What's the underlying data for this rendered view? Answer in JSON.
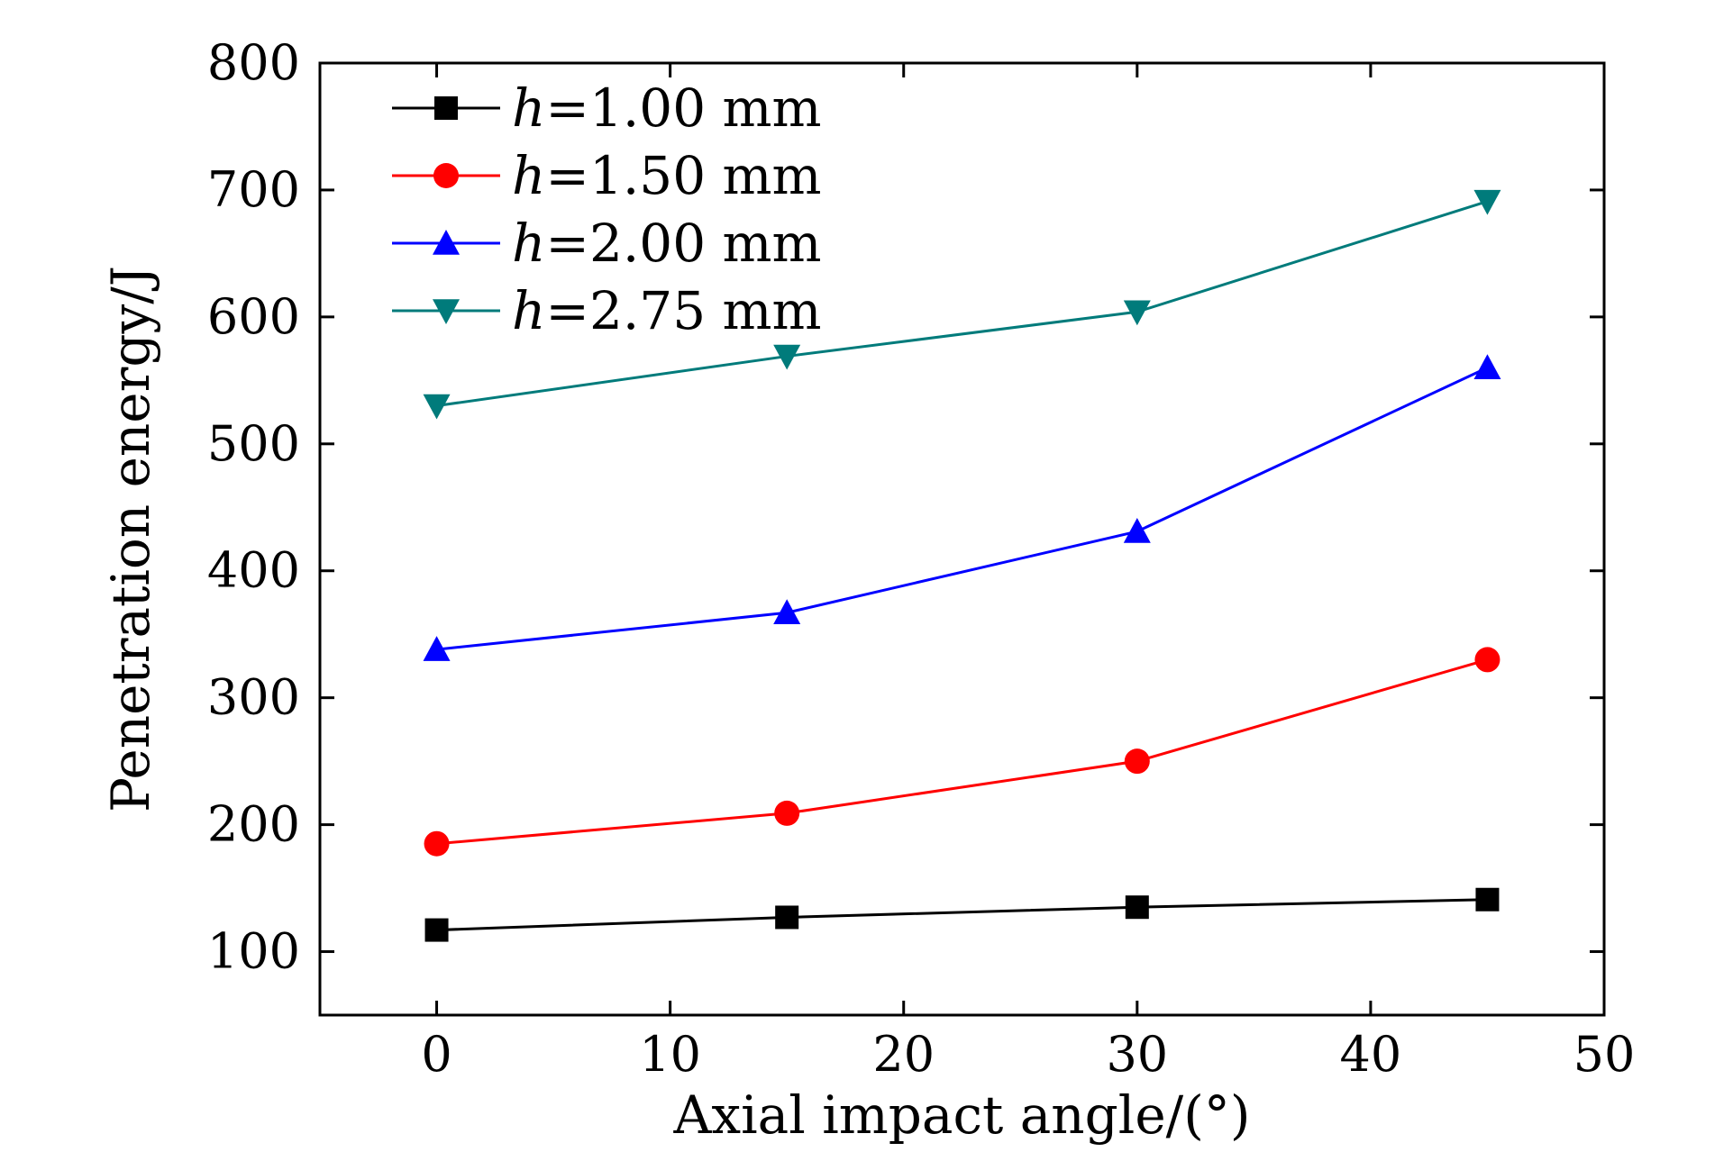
{
  "chart_data": {
    "type": "line",
    "title": "",
    "xlabel": "Axial impact angle/(°)",
    "ylabel": "Penetration energy/J",
    "xlim": [
      -5,
      50
    ],
    "ylim": [
      50,
      800
    ],
    "xticks": [
      0,
      10,
      20,
      30,
      40,
      50
    ],
    "yticks": [
      100,
      200,
      300,
      400,
      500,
      600,
      700,
      800
    ],
    "grid": false,
    "legend_position": "top-left",
    "x": [
      0,
      15,
      30,
      45
    ],
    "series": [
      {
        "name_prefix": "h",
        "name_suffix": "=1.00 mm",
        "color": "#000000",
        "marker": "square",
        "values": [
          117,
          127,
          135,
          141
        ]
      },
      {
        "name_prefix": "h",
        "name_suffix": "=1.50 mm",
        "color": "#ff0000",
        "marker": "circle",
        "values": [
          185,
          209,
          250,
          330
        ]
      },
      {
        "name_prefix": "h",
        "name_suffix": "=2.00 mm",
        "color": "#0000ff",
        "marker": "triangle-up",
        "values": [
          338,
          367,
          431,
          560
        ]
      },
      {
        "name_prefix": "h",
        "name_suffix": "=2.75 mm",
        "color": "#007b7b",
        "marker": "triangle-down",
        "values": [
          530,
          569,
          604,
          691
        ]
      }
    ]
  }
}
